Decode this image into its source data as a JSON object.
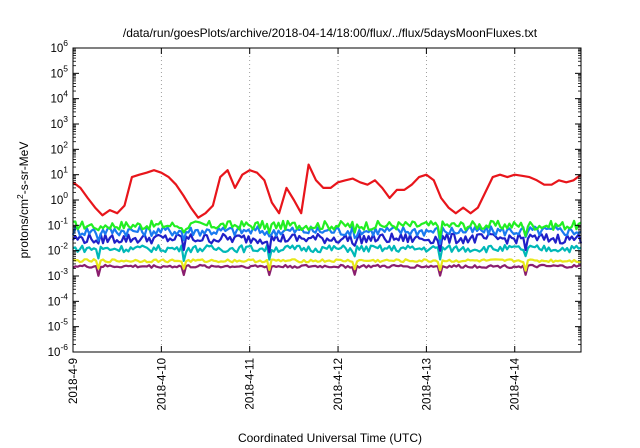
{
  "chart_data": {
    "type": "line",
    "title": "/data/run/goesPlots/archive/2018-04-14/18:00/flux/../flux/5daysMoonFluxes.txt",
    "xlabel": "Coordinated Universal Time (UTC)",
    "ylabel": "protons/cm²-s-sr-MeV",
    "y_scale": "log",
    "ylim": [
      1e-06,
      1000000.0
    ],
    "y_ticks": [
      -6,
      -5,
      -4,
      -3,
      -2,
      -1,
      0,
      1,
      2,
      3,
      4,
      5,
      6
    ],
    "y_tick_base": "10",
    "xlim": [
      "2018-04-09",
      "2018-04-14 18:00"
    ],
    "x_ticks": [
      "2018-4-9",
      "2018-4-10",
      "2018-4-11",
      "2018-4-12",
      "2018-4-13",
      "2018-4-14"
    ],
    "grid": "dotted vertical at each day",
    "series": [
      {
        "color": "#e8151b",
        "x": [
          "2018-04-09 00:00",
          "2018-04-09 02:00",
          "2018-04-09 04:00",
          "2018-04-09 06:00",
          "2018-04-09 08:00",
          "2018-04-09 10:00",
          "2018-04-09 12:00",
          "2018-04-09 14:00",
          "2018-04-09 16:00",
          "2018-04-09 18:00",
          "2018-04-09 20:00",
          "2018-04-09 22:00",
          "2018-04-10 00:00",
          "2018-04-10 02:00",
          "2018-04-10 04:00",
          "2018-04-10 06:00",
          "2018-04-10 08:00",
          "2018-04-10 10:00",
          "2018-04-10 12:00",
          "2018-04-10 14:00",
          "2018-04-10 16:00",
          "2018-04-10 18:00",
          "2018-04-10 20:00",
          "2018-04-10 22:00",
          "2018-04-11 00:00",
          "2018-04-11 02:00",
          "2018-04-11 04:00",
          "2018-04-11 06:00",
          "2018-04-11 08:00",
          "2018-04-11 10:00",
          "2018-04-11 12:00",
          "2018-04-11 14:00",
          "2018-04-11 16:00",
          "2018-04-11 18:00",
          "2018-04-11 20:00",
          "2018-04-11 22:00",
          "2018-04-12 00:00",
          "2018-04-12 02:00",
          "2018-04-12 04:00",
          "2018-04-12 06:00",
          "2018-04-12 08:00",
          "2018-04-12 10:00",
          "2018-04-12 12:00",
          "2018-04-12 14:00",
          "2018-04-12 16:00",
          "2018-04-12 18:00",
          "2018-04-12 20:00",
          "2018-04-12 22:00",
          "2018-04-13 00:00",
          "2018-04-13 02:00",
          "2018-04-13 04:00",
          "2018-04-13 06:00",
          "2018-04-13 08:00",
          "2018-04-13 10:00",
          "2018-04-13 12:00",
          "2018-04-13 14:00",
          "2018-04-13 16:00",
          "2018-04-13 18:00",
          "2018-04-13 20:00",
          "2018-04-13 22:00",
          "2018-04-14 00:00",
          "2018-04-14 02:00",
          "2018-04-14 04:00",
          "2018-04-14 06:00",
          "2018-04-14 08:00",
          "2018-04-14 10:00",
          "2018-04-14 12:00",
          "2018-04-14 14:00",
          "2018-04-14 16:00",
          "2018-04-14 18:00"
        ],
        "values": [
          5,
          3,
          1.2,
          0.5,
          0.25,
          0.4,
          0.3,
          0.6,
          8,
          10,
          12,
          15,
          12,
          8,
          4,
          1.5,
          0.5,
          0.2,
          0.3,
          0.6,
          8,
          15,
          3,
          10,
          15,
          12,
          6,
          0.8,
          0.3,
          3,
          1,
          0.3,
          25,
          6,
          3,
          3,
          5,
          6,
          7,
          5,
          4,
          6,
          3,
          1.2,
          2.5,
          2.5,
          4,
          8,
          10,
          6,
          1.2,
          0.5,
          0.3,
          0.5,
          0.3,
          0.5,
          2,
          8,
          10,
          8,
          10,
          9,
          8,
          6,
          4,
          4,
          6,
          5,
          6,
          10
        ]
      },
      {
        "color": "#22ee22",
        "level": 0.1,
        "amplitude": 0.18
      },
      {
        "color": "#1a7af0",
        "level": 0.06,
        "amplitude": 0.2
      },
      {
        "color": "#2020c8",
        "level": 0.03,
        "amplitude": 0.2
      },
      {
        "color": "#00b8b8",
        "level": 0.012,
        "amplitude": 0.14
      },
      {
        "color": "#e8e81a",
        "level": 0.004,
        "amplitude": 0.06
      },
      {
        "color": "#8a1e6e",
        "level": 0.0024,
        "amplitude": 0.06
      }
    ]
  }
}
